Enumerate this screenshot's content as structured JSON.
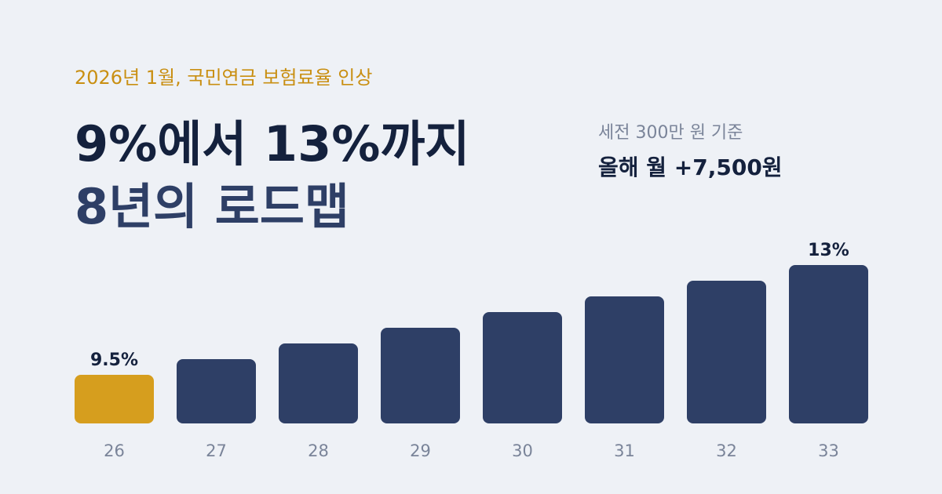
{
  "chart_data": {
    "type": "bar",
    "subtitle": "2026년 1월, 국민연금 보험료율 인상",
    "title": [
      "9%에서 13%까지",
      "8년의 로드맵"
    ],
    "annotations": [
      "세전 300만 원 기준",
      "올해 월 +7,500원"
    ],
    "categories": [
      "26",
      "27",
      "28",
      "29",
      "30",
      "31",
      "32",
      "33"
    ],
    "values": [
      9.5,
      10,
      10.5,
      11,
      11.5,
      12,
      12.5,
      13
    ],
    "value_labels": [
      "9.5%",
      null,
      null,
      null,
      null,
      null,
      null,
      "13%"
    ],
    "colors": [
      "#d69e1e",
      "#2e3f66",
      "#2e3f66",
      "#2e3f66",
      "#2e3f66",
      "#2e3f66",
      "#2e3f66",
      "#2e3f66"
    ],
    "ylim": [
      7.95,
      13.5
    ]
  }
}
